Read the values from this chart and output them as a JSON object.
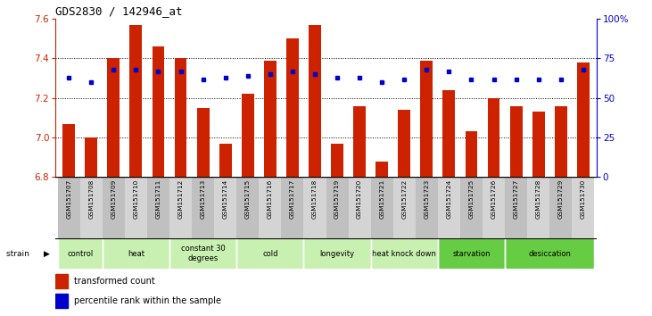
{
  "title": "GDS2830 / 142946_at",
  "samples": [
    "GSM151707",
    "GSM151708",
    "GSM151709",
    "GSM151710",
    "GSM151711",
    "GSM151712",
    "GSM151713",
    "GSM151714",
    "GSM151715",
    "GSM151716",
    "GSM151717",
    "GSM151718",
    "GSM151719",
    "GSM151720",
    "GSM151721",
    "GSM151722",
    "GSM151723",
    "GSM151724",
    "GSM151725",
    "GSM151726",
    "GSM151727",
    "GSM151728",
    "GSM151729",
    "GSM151730"
  ],
  "bar_values": [
    7.07,
    7.0,
    7.4,
    7.57,
    7.46,
    7.4,
    7.15,
    6.97,
    7.22,
    7.39,
    7.5,
    7.57,
    6.97,
    7.16,
    6.88,
    7.14,
    7.39,
    7.24,
    7.03,
    7.2,
    7.16,
    7.13,
    7.16,
    7.38
  ],
  "percentile_values": [
    63,
    60,
    68,
    68,
    67,
    67,
    62,
    63,
    64,
    65,
    67,
    65,
    63,
    63,
    60,
    62,
    68,
    67,
    62,
    62,
    62,
    62,
    62,
    68
  ],
  "groups": [
    {
      "label": "control",
      "start": 0,
      "end": 2,
      "color": "#c8f0b0"
    },
    {
      "label": "heat",
      "start": 2,
      "end": 5,
      "color": "#c8f0b0"
    },
    {
      "label": "constant 30\ndegrees",
      "start": 5,
      "end": 8,
      "color": "#c8f0b0"
    },
    {
      "label": "cold",
      "start": 8,
      "end": 11,
      "color": "#c8f0b0"
    },
    {
      "label": "longevity",
      "start": 11,
      "end": 14,
      "color": "#c8f0b0"
    },
    {
      "label": "heat knock down",
      "start": 14,
      "end": 17,
      "color": "#c8f0b0"
    },
    {
      "label": "starvation",
      "start": 17,
      "end": 20,
      "color": "#66cc44"
    },
    {
      "label": "desiccation",
      "start": 20,
      "end": 24,
      "color": "#66cc44"
    }
  ],
  "bar_color": "#cc2200",
  "dot_color": "#0000cc",
  "ylim": [
    6.8,
    7.6
  ],
  "yticks": [
    6.8,
    7.0,
    7.2,
    7.4,
    7.6
  ],
  "y2_ticks": [
    0,
    25,
    50,
    75,
    100
  ],
  "y2_labels": [
    "0",
    "25",
    "50",
    "75",
    "100%"
  ],
  "ylabel_color": "#cc2200",
  "y2_color": "#0000cc",
  "bg_plot": "#ffffff",
  "label_color_even": "#c0c0c0",
  "label_color_odd": "#d4d4d4"
}
